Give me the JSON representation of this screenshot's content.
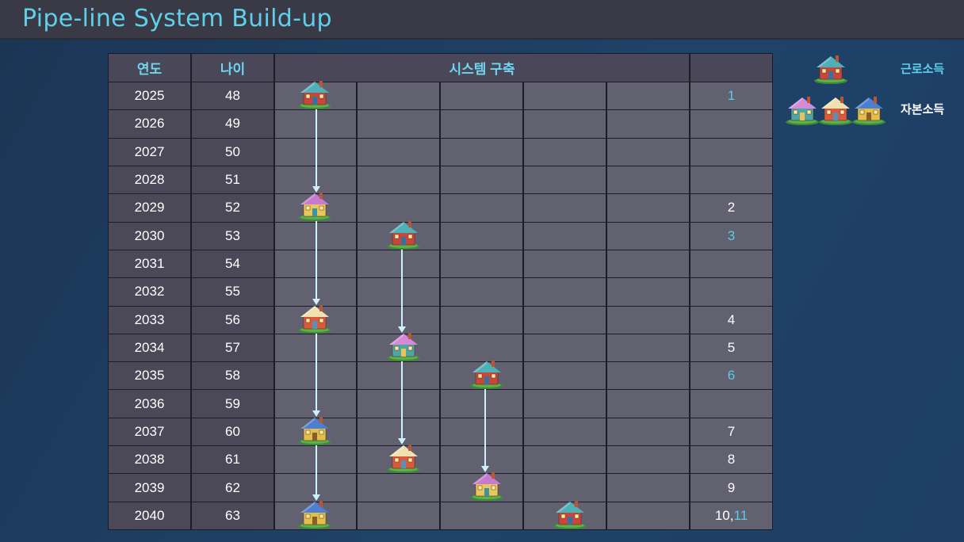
{
  "page": {
    "title": "Pipe-line System Build-up"
  },
  "table": {
    "headers": {
      "year": "연도",
      "age": "나이",
      "system": "시스템 구축",
      "count": ""
    },
    "rows": [
      {
        "year": "2025",
        "age": "48",
        "count_parts": [
          {
            "text": "1",
            "color": "cyan"
          }
        ]
      },
      {
        "year": "2026",
        "age": "49",
        "count_parts": []
      },
      {
        "year": "2027",
        "age": "50",
        "count_parts": []
      },
      {
        "year": "2028",
        "age": "51",
        "count_parts": []
      },
      {
        "year": "2029",
        "age": "52",
        "count_parts": [
          {
            "text": "2",
            "color": "white"
          }
        ]
      },
      {
        "year": "2030",
        "age": "53",
        "count_parts": [
          {
            "text": "3",
            "color": "cyan"
          }
        ]
      },
      {
        "year": "2031",
        "age": "54",
        "count_parts": []
      },
      {
        "year": "2032",
        "age": "55",
        "count_parts": []
      },
      {
        "year": "2033",
        "age": "56",
        "count_parts": [
          {
            "text": "4",
            "color": "white"
          }
        ]
      },
      {
        "year": "2034",
        "age": "57",
        "count_parts": [
          {
            "text": "5",
            "color": "white"
          }
        ]
      },
      {
        "year": "2035",
        "age": "58",
        "count_parts": [
          {
            "text": "6",
            "color": "cyan"
          }
        ]
      },
      {
        "year": "2036",
        "age": "59",
        "count_parts": []
      },
      {
        "year": "2037",
        "age": "60",
        "count_parts": [
          {
            "text": "7",
            "color": "white"
          }
        ]
      },
      {
        "year": "2038",
        "age": "61",
        "count_parts": [
          {
            "text": "8",
            "color": "white"
          }
        ]
      },
      {
        "year": "2039",
        "age": "62",
        "count_parts": [
          {
            "text": "9",
            "color": "white"
          }
        ]
      },
      {
        "year": "2040",
        "age": "63",
        "count_parts": [
          {
            "text": "10",
            "color": "white"
          },
          {
            "text": ", ",
            "color": "white"
          },
          {
            "text": "11",
            "color": "cyan"
          }
        ]
      }
    ],
    "system_columns": 5
  },
  "houses": [
    {
      "row": 0,
      "col": 0,
      "variant": "teal-red"
    },
    {
      "row": 4,
      "col": 0,
      "variant": "pink-yellow"
    },
    {
      "row": 5,
      "col": 1,
      "variant": "teal-red"
    },
    {
      "row": 8,
      "col": 0,
      "variant": "cream-red"
    },
    {
      "row": 9,
      "col": 1,
      "variant": "pink-teal"
    },
    {
      "row": 10,
      "col": 2,
      "variant": "teal-red"
    },
    {
      "row": 12,
      "col": 0,
      "variant": "blue-yellow"
    },
    {
      "row": 13,
      "col": 1,
      "variant": "cream-red"
    },
    {
      "row": 14,
      "col": 2,
      "variant": "pink-yellow"
    },
    {
      "row": 15,
      "col": 0,
      "variant": "blue-yellow"
    },
    {
      "row": 15,
      "col": 3,
      "variant": "teal-red"
    }
  ],
  "arrows": [
    {
      "col": 0,
      "from_row": 0,
      "to_row": 4
    },
    {
      "col": 0,
      "from_row": 4,
      "to_row": 8
    },
    {
      "col": 0,
      "from_row": 8,
      "to_row": 12
    },
    {
      "col": 0,
      "from_row": 12,
      "to_row": 15
    },
    {
      "col": 1,
      "from_row": 5,
      "to_row": 9
    },
    {
      "col": 1,
      "from_row": 9,
      "to_row": 13
    },
    {
      "col": 2,
      "from_row": 10,
      "to_row": 14
    }
  ],
  "legend": {
    "labor_income": "근로소득",
    "capital_income": "자본소득",
    "labor_house": "teal-red",
    "capital_houses": [
      "pink-teal",
      "cream-red",
      "blue-yellow"
    ]
  },
  "colors": {
    "teal-red": {
      "roof": "#4fb0b8",
      "wall": "#c8473c",
      "door": "#3a6fa0"
    },
    "pink-yellow": {
      "roof": "#c77bd0",
      "wall": "#e7c85a",
      "door": "#3e8fa8"
    },
    "pink-teal": {
      "roof": "#d58ad8",
      "wall": "#4aa7a4",
      "door": "#e8c35a"
    },
    "cream-red": {
      "roof": "#f1e0b0",
      "wall": "#d85a3f",
      "door": "#5a8fb8"
    },
    "blue-yellow": {
      "roof": "#4c7fd0",
      "wall": "#e1c04a",
      "door": "#8a5c2e"
    }
  }
}
